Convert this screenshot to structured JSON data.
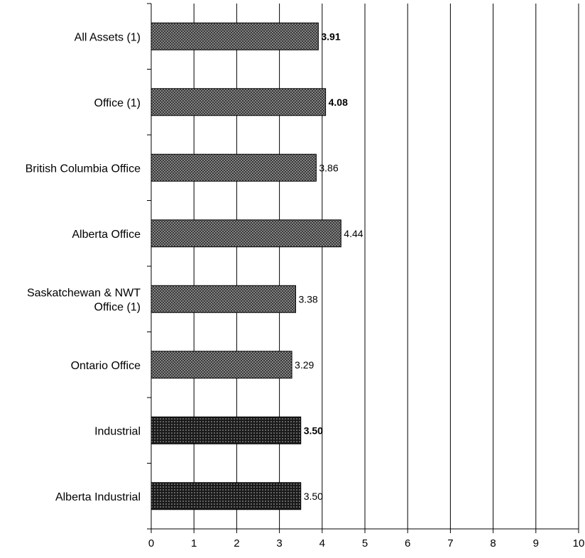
{
  "chart_data": {
    "type": "bar",
    "orientation": "horizontal",
    "categories": [
      "All Assets (1)",
      "Office (1)",
      "British Columbia Office",
      "Alberta Office",
      "Saskatchewan & NWT Office (1)",
      "Ontario Office",
      "Industrial",
      "Alberta Industrial"
    ],
    "category_lines": [
      [
        "All Assets (1)"
      ],
      [
        "Office (1)"
      ],
      [
        "British Columbia Office"
      ],
      [
        "Alberta Office"
      ],
      [
        "Saskatchewan & NWT",
        "Office (1)"
      ],
      [
        "Ontario Office"
      ],
      [
        "Industrial"
      ],
      [
        "Alberta Industrial"
      ]
    ],
    "values": [
      3.91,
      4.08,
      3.86,
      4.44,
      3.38,
      3.29,
      3.5,
      3.5
    ],
    "value_labels": [
      "3.91",
      "4.08",
      "3.86",
      "4.44",
      "3.38",
      "3.29",
      "3.50",
      "3.50"
    ],
    "label_bold": [
      true,
      true,
      false,
      false,
      false,
      false,
      true,
      false
    ],
    "bar_style": [
      "office",
      "office",
      "office",
      "office",
      "office",
      "office",
      "industrial",
      "industrial"
    ],
    "colors": {
      "office_fill": "#9a9a9a",
      "office_pattern": "#2a2a2a",
      "industrial_fill": "#1a1a1a",
      "industrial_pattern": "#bdbdbd",
      "gridline": "#000000",
      "axis": "#000000"
    },
    "xlim": [
      0,
      10
    ],
    "xticks": [
      "0",
      "1",
      "2",
      "3",
      "4",
      "5",
      "6",
      "7",
      "8",
      "9",
      "10"
    ],
    "grid": true,
    "title": "",
    "xlabel": "",
    "ylabel": ""
  }
}
